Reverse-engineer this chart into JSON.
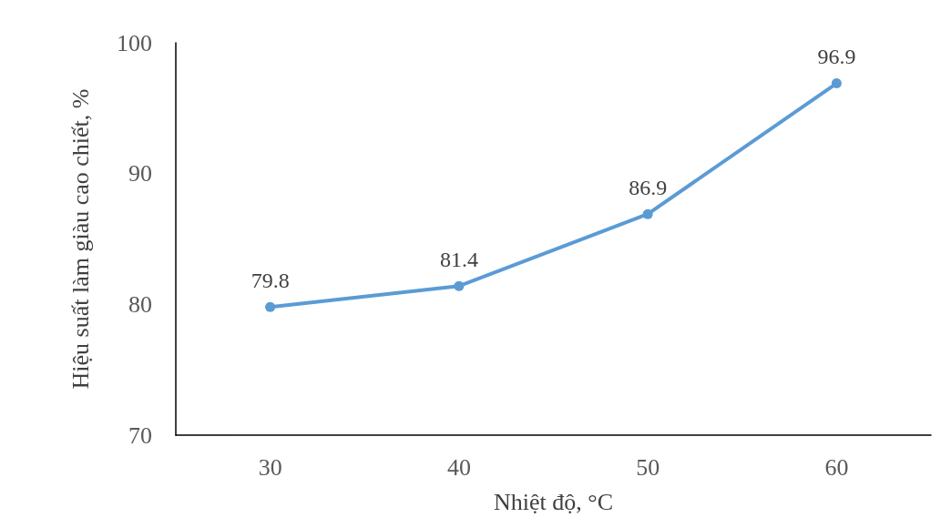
{
  "chart_data": {
    "type": "line",
    "xlabel": "Nhiệt độ, °C",
    "ylabel": "Hiệu suất làm giàu cao chiết, %",
    "categories": [
      "30",
      "40",
      "50",
      "60"
    ],
    "series": [
      {
        "color": "#5b9bd5",
        "values": [
          79.8,
          81.4,
          86.9,
          96.9
        ]
      }
    ],
    "ylim": [
      70,
      100
    ],
    "yticks": [
      70,
      80,
      90,
      100
    ],
    "grid": false,
    "marker": "circle",
    "line_style": "solid",
    "data_labels": true
  }
}
